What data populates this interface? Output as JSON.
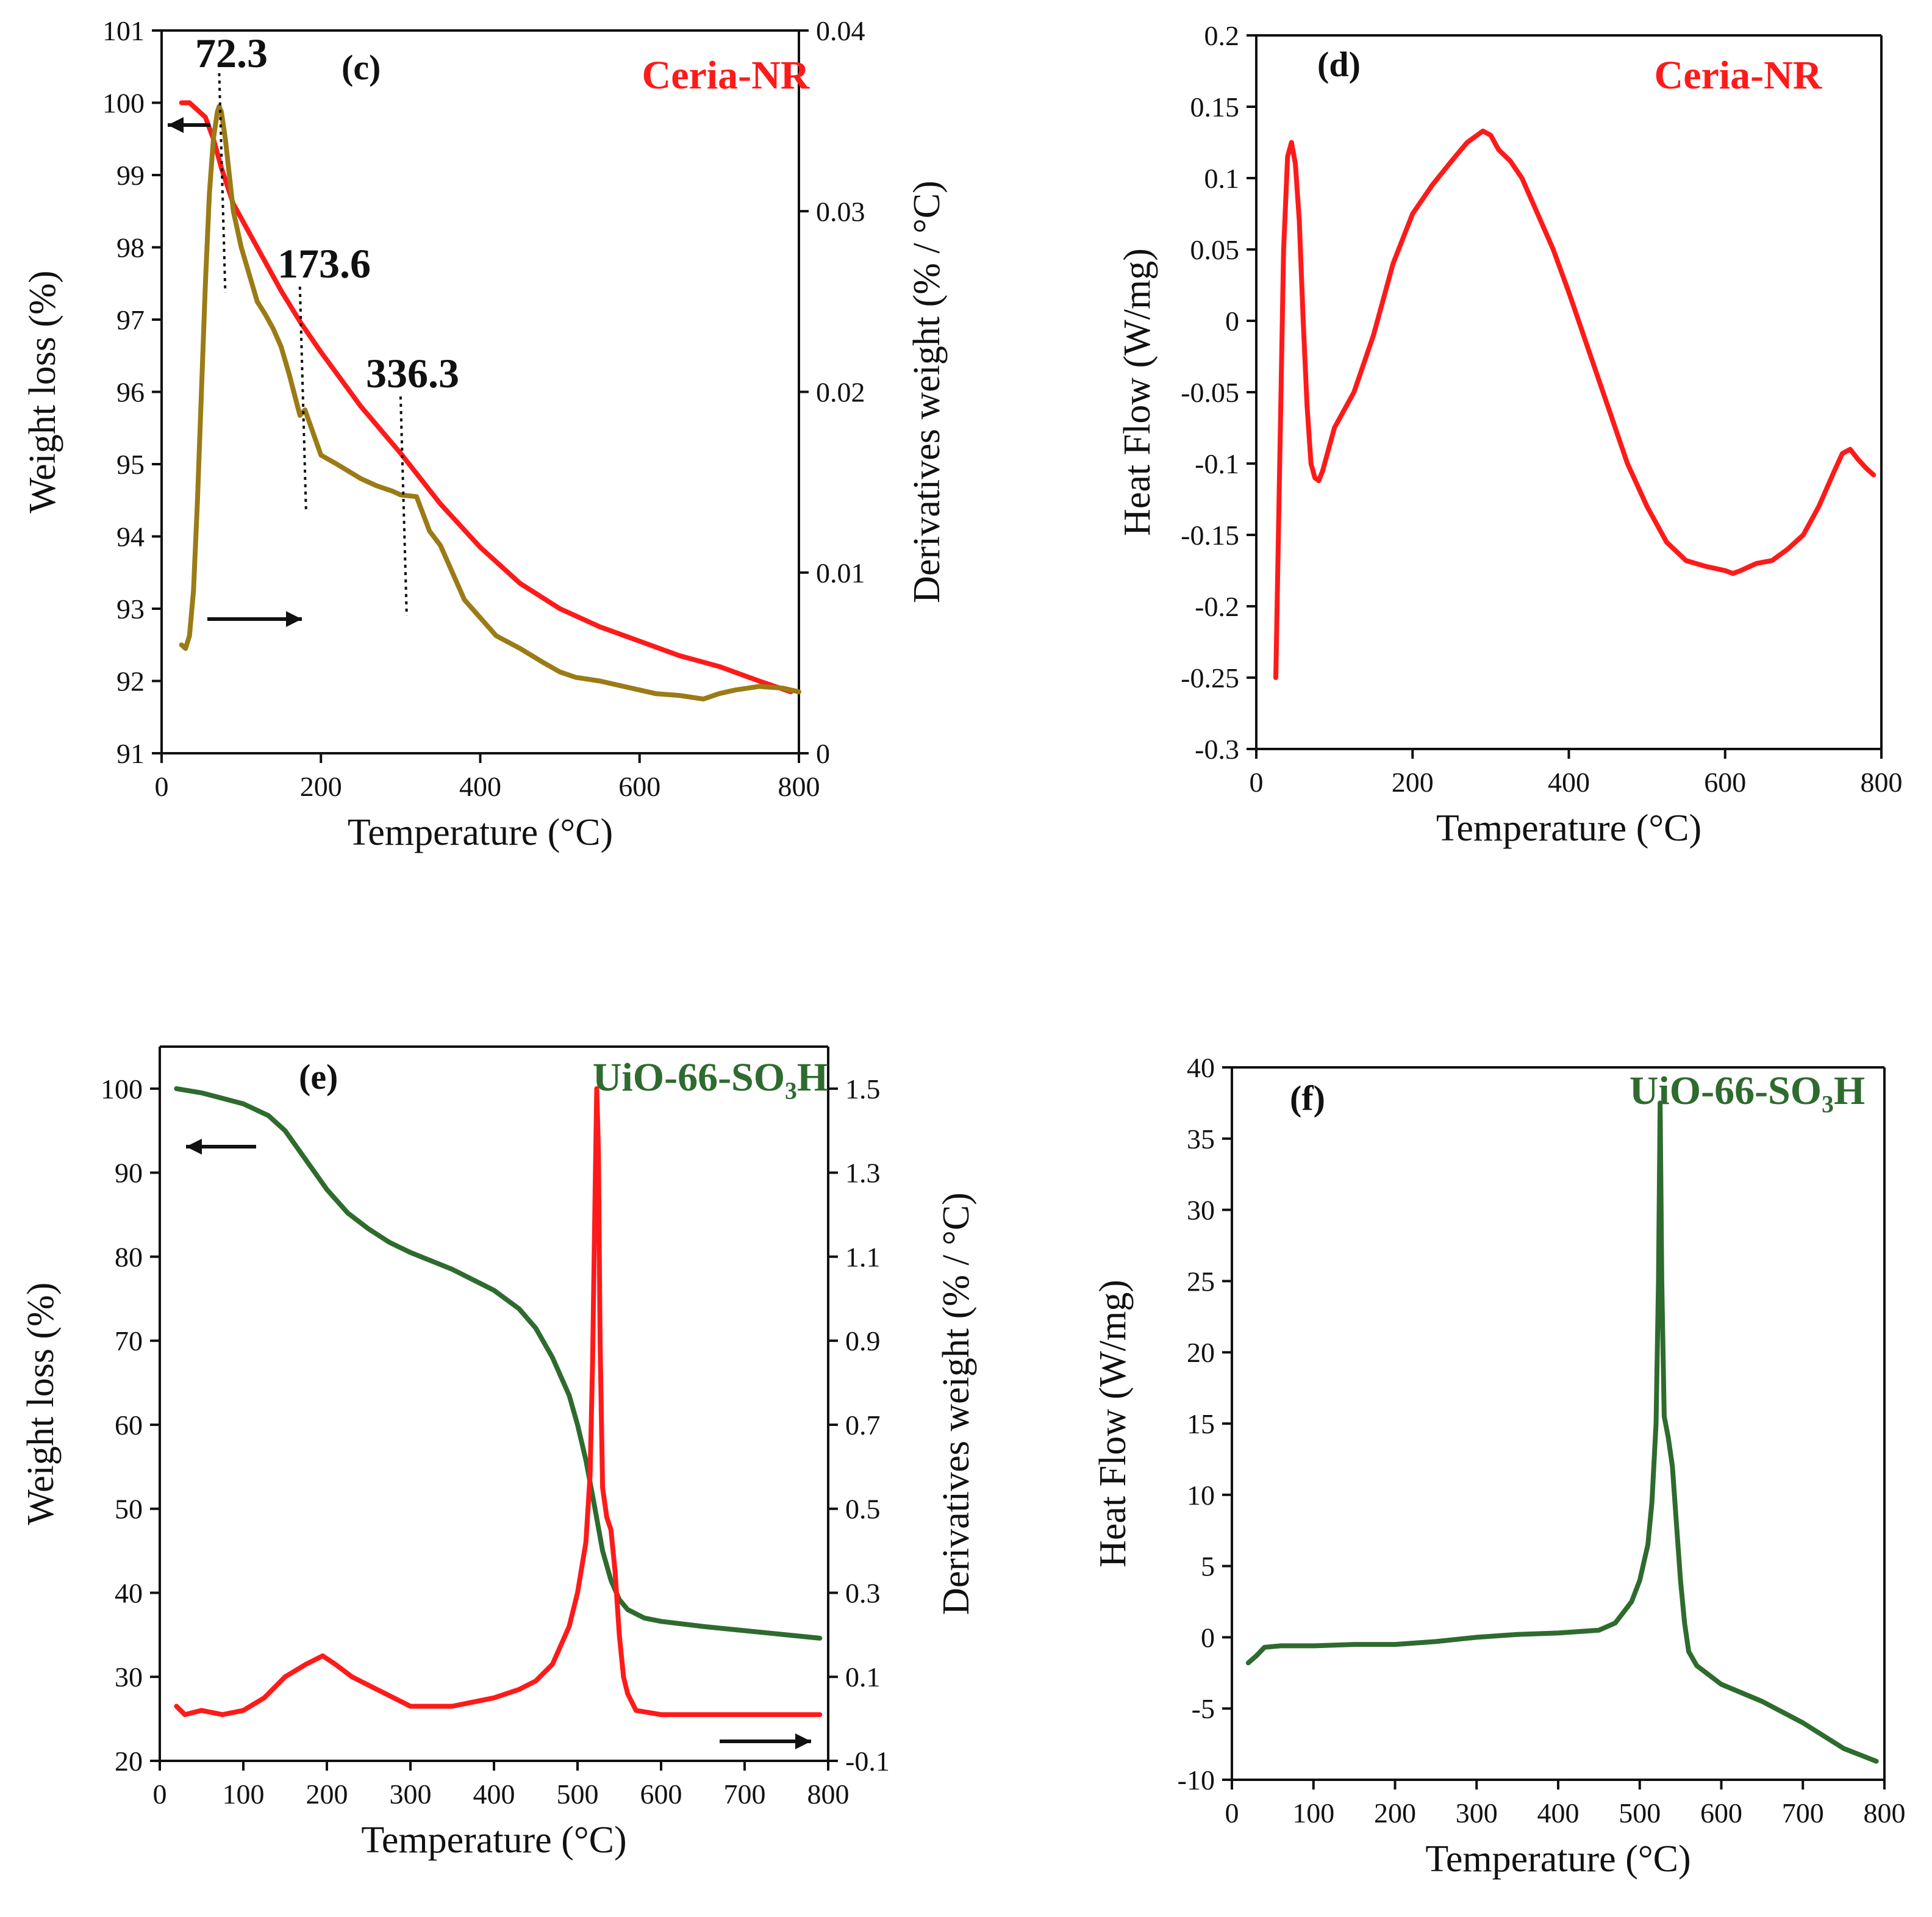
{
  "figure": {
    "colors": {
      "red": "#ff1a1a",
      "olive": "#9b7b16",
      "green": "#2e6b2e",
      "black": "#111111"
    }
  },
  "chart_data": [
    {
      "id": "c",
      "type": "line",
      "panel_label": "(c)",
      "title": "Ceria-NR",
      "title_color": "#ff1a1a",
      "xlabel": "Temperature (°C)",
      "ylabel": "Weight loss (%)",
      "y2label": "Derivatives weight (% / °C)",
      "xlim": [
        0,
        800
      ],
      "ylim": [
        91,
        101
      ],
      "y2lim": [
        0,
        0.04
      ],
      "xticks": [
        0,
        200,
        400,
        600,
        800
      ],
      "xtick_labels": [
        "0",
        "200",
        "400",
        "600",
        "800"
      ],
      "yticks": [
        91,
        92,
        93,
        94,
        95,
        96,
        97,
        98,
        99,
        100,
        101
      ],
      "ytick_labels": [
        "91",
        "92",
        "93",
        "94",
        "95",
        "96",
        "97",
        "98",
        "99",
        "100",
        "101"
      ],
      "y2ticks": [
        0,
        0.01,
        0.02,
        0.03,
        0.04
      ],
      "y2tick_labels": [
        "0",
        "0.01",
        "0.02",
        "0.03",
        "0.04"
      ],
      "series": [
        {
          "name": "Weight loss",
          "axis": "left",
          "color": "#ff1a1a",
          "x": [
            25,
            35,
            45,
            55,
            65,
            75,
            90,
            110,
            130,
            150,
            175,
            200,
            250,
            300,
            350,
            400,
            450,
            500,
            550,
            600,
            650,
            700,
            750,
            790
          ],
          "y": [
            100,
            100,
            99.9,
            99.8,
            99.5,
            99.1,
            98.6,
            98.2,
            97.8,
            97.4,
            96.95,
            96.55,
            95.8,
            95.15,
            94.45,
            93.85,
            93.35,
            93.0,
            92.75,
            92.55,
            92.35,
            92.2,
            92.0,
            91.85
          ]
        },
        {
          "name": "Derivative weight",
          "axis": "right",
          "color": "#9b7b16",
          "x": [
            25,
            30,
            35,
            40,
            45,
            50,
            55,
            60,
            65,
            70,
            72.3,
            75,
            80,
            90,
            100,
            110,
            120,
            130,
            140,
            150,
            160,
            173.6,
            180,
            200,
            220,
            250,
            270,
            290,
            300,
            320,
            336.3,
            350,
            360,
            380,
            400,
            420,
            450,
            480,
            500,
            520,
            550,
            580,
            600,
            620,
            650,
            680,
            700,
            720,
            750,
            780,
            800
          ],
          "y": [
            0.006,
            0.0058,
            0.0065,
            0.009,
            0.014,
            0.02,
            0.026,
            0.031,
            0.034,
            0.0355,
            0.0358,
            0.0355,
            0.034,
            0.03,
            0.028,
            0.0265,
            0.025,
            0.0243,
            0.0235,
            0.0225,
            0.021,
            0.0187,
            0.019,
            0.0165,
            0.016,
            0.0152,
            0.0148,
            0.0145,
            0.0143,
            0.0142,
            0.0123,
            0.0115,
            0.0105,
            0.0085,
            0.0075,
            0.0065,
            0.0058,
            0.005,
            0.0045,
            0.0042,
            0.004,
            0.0037,
            0.0035,
            0.0033,
            0.0032,
            0.003,
            0.0033,
            0.0035,
            0.0037,
            0.0036,
            0.0034
          ]
        }
      ],
      "annotations": [
        {
          "text": "72.3",
          "x": 72.3
        },
        {
          "text": "173.6",
          "x": 173.6
        },
        {
          "text": "336.3",
          "x": 300
        }
      ]
    },
    {
      "id": "d",
      "type": "line",
      "panel_label": "(d)",
      "title": "Ceria-NR",
      "title_color": "#ff1a1a",
      "xlabel": "Temperature (°C)",
      "ylabel": "Heat Flow (W/mg)",
      "xlim": [
        0,
        800
      ],
      "ylim": [
        -0.3,
        0.2
      ],
      "xticks": [
        0,
        200,
        400,
        600,
        800
      ],
      "xtick_labels": [
        "0",
        "200",
        "400",
        "600",
        "800"
      ],
      "yticks": [
        -0.3,
        -0.25,
        -0.2,
        -0.15,
        -0.1,
        -0.05,
        0,
        0.05,
        0.1,
        0.15,
        0.2
      ],
      "ytick_labels": [
        "-0.3",
        "-0.25",
        "-0.2",
        "-0.15",
        "-0.1",
        "-0.05",
        "0",
        "0.05",
        "0.1",
        "0.15",
        "0.2"
      ],
      "series": [
        {
          "name": "Heat flow",
          "color": "#ff1a1a",
          "x": [
            25,
            30,
            35,
            40,
            45,
            50,
            55,
            60,
            65,
            70,
            75,
            80,
            85,
            90,
            100,
            110,
            125,
            150,
            175,
            200,
            225,
            250,
            270,
            290,
            300,
            310,
            325,
            340,
            360,
            380,
            400,
            425,
            450,
            475,
            500,
            525,
            550,
            575,
            600,
            610,
            620,
            640,
            660,
            680,
            700,
            720,
            740,
            750,
            760,
            770,
            780,
            790
          ],
          "y": [
            -0.25,
            -0.1,
            0.05,
            0.115,
            0.125,
            0.11,
            0.07,
            0.0,
            -0.06,
            -0.1,
            -0.11,
            -0.112,
            -0.105,
            -0.095,
            -0.075,
            -0.065,
            -0.05,
            -0.01,
            0.04,
            0.075,
            0.095,
            0.112,
            0.125,
            0.133,
            0.13,
            0.12,
            0.112,
            0.1,
            0.075,
            0.05,
            0.02,
            -0.02,
            -0.06,
            -0.1,
            -0.13,
            -0.155,
            -0.168,
            -0.172,
            -0.175,
            -0.177,
            -0.175,
            -0.17,
            -0.168,
            -0.16,
            -0.15,
            -0.13,
            -0.105,
            -0.093,
            -0.09,
            -0.097,
            -0.103,
            -0.108
          ]
        }
      ]
    },
    {
      "id": "e",
      "type": "line",
      "panel_label": "(e)",
      "title": "UiO-66-SO₃H",
      "title_color": "#2e6b2e",
      "xlabel": "Temperature (°C)",
      "ylabel": "Weight loss (%)",
      "y2label": "Derivatives weight (% / °C)",
      "xlim": [
        0,
        800
      ],
      "ylim": [
        20,
        105
      ],
      "y2lim": [
        -0.1,
        1.6
      ],
      "xticks": [
        0,
        100,
        200,
        300,
        400,
        500,
        600,
        700,
        800
      ],
      "xtick_labels": [
        "0",
        "100",
        "200",
        "300",
        "400",
        "500",
        "600",
        "700",
        "800"
      ],
      "yticks": [
        20,
        30,
        40,
        50,
        60,
        70,
        80,
        90,
        100
      ],
      "ytick_labels": [
        "20",
        "30",
        "40",
        "50",
        "60",
        "70",
        "80",
        "90",
        "100"
      ],
      "y2ticks": [
        -0.1,
        0.1,
        0.3,
        0.5,
        0.7,
        0.9,
        1.1,
        1.3,
        1.5
      ],
      "y2tick_labels": [
        "-0.1",
        "0.1",
        "0.3",
        "0.5",
        "0.7",
        "0.9",
        "1.1",
        "1.3",
        "1.5"
      ],
      "series": [
        {
          "name": "Weight loss",
          "axis": "left",
          "color": "#2e6b2e",
          "x": [
            20,
            50,
            100,
            130,
            150,
            175,
            200,
            225,
            250,
            275,
            300,
            350,
            400,
            430,
            450,
            470,
            490,
            500,
            510,
            520,
            530,
            540,
            550,
            560,
            580,
            600,
            650,
            700,
            750,
            790
          ],
          "y": [
            100,
            99.5,
            98.2,
            96.8,
            95,
            91.5,
            88,
            85.2,
            83.3,
            81.7,
            80.5,
            78.5,
            76,
            73.8,
            71.5,
            68,
            63.5,
            60,
            55.8,
            50.5,
            45,
            41.5,
            39.2,
            38,
            37,
            36.6,
            36,
            35.5,
            35,
            34.6
          ]
        },
        {
          "name": "Derivative weight",
          "axis": "right",
          "color": "#ff1a1a",
          "x": [
            20,
            30,
            50,
            75,
            100,
            125,
            150,
            175,
            195,
            210,
            230,
            260,
            300,
            350,
            400,
            430,
            450,
            470,
            490,
            500,
            510,
            515,
            518,
            521,
            523,
            525,
            527,
            530,
            535,
            540,
            545,
            550,
            555,
            560,
            570,
            600,
            650,
            700,
            750,
            790
          ],
          "y": [
            0.03,
            0.01,
            0.02,
            0.01,
            0.02,
            0.05,
            0.1,
            0.13,
            0.15,
            0.13,
            0.1,
            0.07,
            0.03,
            0.03,
            0.05,
            0.07,
            0.09,
            0.13,
            0.22,
            0.3,
            0.42,
            0.58,
            0.85,
            1.25,
            1.5,
            1.35,
            0.9,
            0.55,
            0.48,
            0.45,
            0.35,
            0.2,
            0.1,
            0.06,
            0.02,
            0.01,
            0.01,
            0.01,
            0.01,
            0.01
          ]
        }
      ]
    },
    {
      "id": "f",
      "type": "line",
      "panel_label": "(f)",
      "title": "UiO-66-SO₃H",
      "title_color": "#2e6b2e",
      "xlabel": "Temperature (°C)",
      "ylabel": "Heat Flow (W/mg)",
      "xlim": [
        0,
        800
      ],
      "ylim": [
        -10,
        40
      ],
      "xticks": [
        0,
        100,
        200,
        300,
        400,
        500,
        600,
        700,
        800
      ],
      "xtick_labels": [
        "0",
        "100",
        "200",
        "300",
        "400",
        "500",
        "600",
        "700",
        "800"
      ],
      "yticks": [
        -10,
        -5,
        0,
        5,
        10,
        15,
        20,
        25,
        30,
        35,
        40
      ],
      "ytick_labels": [
        "-10",
        "-5",
        "0",
        "5",
        "10",
        "15",
        "20",
        "25",
        "30",
        "35",
        "40"
      ],
      "series": [
        {
          "name": "Heat flow",
          "color": "#2e6b2e",
          "x": [
            20,
            30,
            40,
            60,
            100,
            150,
            200,
            250,
            300,
            350,
            400,
            450,
            470,
            490,
            500,
            510,
            515,
            520,
            523,
            525,
            527,
            530,
            535,
            540,
            545,
            550,
            555,
            560,
            570,
            600,
            650,
            700,
            750,
            790
          ],
          "y": [
            -1.8,
            -1.3,
            -0.7,
            -0.6,
            -0.6,
            -0.5,
            -0.5,
            -0.3,
            0.0,
            0.2,
            0.3,
            0.5,
            1.0,
            2.5,
            4.0,
            6.5,
            9.5,
            15.0,
            25.0,
            37.5,
            25.0,
            15.5,
            14.0,
            12.0,
            8.0,
            4.0,
            1.0,
            -1.0,
            -2.0,
            -3.3,
            -4.5,
            -6.0,
            -7.8,
            -8.7
          ]
        }
      ]
    }
  ]
}
